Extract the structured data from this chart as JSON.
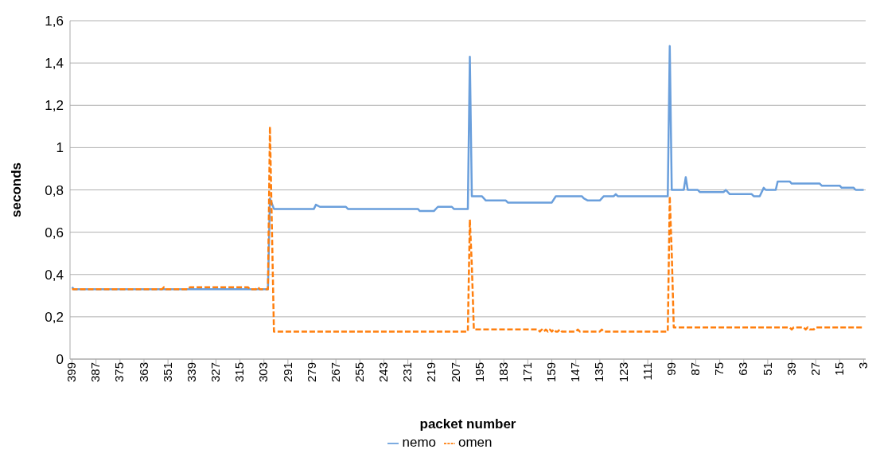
{
  "chart_data": {
    "type": "line",
    "xlabel": "packet number",
    "ylabel": "seconds",
    "xlim": [
      400,
      2
    ],
    "xticks": [
      399,
      387,
      375,
      363,
      351,
      339,
      327,
      315,
      303,
      291,
      279,
      267,
      255,
      243,
      231,
      219,
      207,
      195,
      183,
      171,
      159,
      147,
      135,
      123,
      111,
      99,
      87,
      75,
      63,
      51,
      39,
      27,
      15,
      3
    ],
    "ylim": [
      0,
      1.6
    ],
    "yticks": [
      0,
      {
        "value": 0.2,
        "label": "0,2"
      },
      {
        "value": 0.4,
        "label": "0,4"
      },
      {
        "value": 0.6,
        "label": "0,6"
      },
      {
        "value": 0.8,
        "label": "0,8"
      },
      1,
      {
        "value": 1.2,
        "label": "1,2"
      },
      {
        "value": 1.4,
        "label": "1,4"
      },
      {
        "value": 1.6,
        "label": "1,6"
      }
    ],
    "grid": "y",
    "legend": "bottom",
    "marker": "none",
    "series": [
      {
        "name": "nemo",
        "color": "#6a9fdc",
        "line_style": "solid",
        "x": [
          399,
          398,
          301,
          300,
          298,
          278,
          277,
          275,
          262,
          261,
          226,
          225,
          218,
          216,
          209,
          208,
          201,
          200,
          199,
          194,
          192,
          182,
          181,
          159,
          157,
          144,
          143,
          141,
          135,
          133,
          128,
          127,
          126,
          101,
          100,
          99,
          93,
          92,
          91,
          86,
          85,
          73,
          72,
          70,
          59,
          58,
          55,
          53,
          52,
          47,
          46,
          40,
          39,
          25,
          24,
          15,
          14,
          8,
          7,
          3
        ],
        "values": [
          0.34,
          0.33,
          0.33,
          0.76,
          0.71,
          0.71,
          0.73,
          0.72,
          0.72,
          0.71,
          0.71,
          0.7,
          0.7,
          0.72,
          0.72,
          0.71,
          0.71,
          1.43,
          0.77,
          0.77,
          0.75,
          0.75,
          0.74,
          0.74,
          0.77,
          0.77,
          0.76,
          0.75,
          0.75,
          0.77,
          0.77,
          0.78,
          0.77,
          0.77,
          1.48,
          0.8,
          0.8,
          0.86,
          0.8,
          0.8,
          0.79,
          0.79,
          0.8,
          0.78,
          0.78,
          0.77,
          0.77,
          0.81,
          0.8,
          0.8,
          0.84,
          0.84,
          0.83,
          0.83,
          0.82,
          0.82,
          0.81,
          0.81,
          0.8,
          0.8
        ]
      },
      {
        "name": "omen",
        "color": "#ff7f0e",
        "line_style": "dashed",
        "x": [
          399,
          354,
          353,
          352,
          341,
          340,
          311,
          310,
          307,
          306,
          305,
          301,
          300,
          298,
          201,
          200,
          199,
          198,
          166,
          165,
          164,
          163,
          162,
          161,
          160,
          159,
          158,
          157,
          156,
          155,
          154,
          147,
          146,
          145,
          135,
          134,
          133,
          101,
          100,
          99,
          98,
          40,
          39,
          38,
          33,
          32,
          31,
          30,
          28,
          27,
          3
        ],
        "values": [
          0.33,
          0.33,
          0.34,
          0.33,
          0.33,
          0.34,
          0.34,
          0.33,
          0.33,
          0.34,
          0.33,
          0.33,
          1.1,
          0.13,
          0.13,
          0.66,
          0.44,
          0.14,
          0.14,
          0.13,
          0.14,
          0.13,
          0.14,
          0.13,
          0.14,
          0.13,
          0.14,
          0.13,
          0.13,
          0.14,
          0.13,
          0.13,
          0.14,
          0.13,
          0.13,
          0.14,
          0.13,
          0.13,
          0.77,
          0.5,
          0.15,
          0.15,
          0.14,
          0.15,
          0.15,
          0.14,
          0.15,
          0.14,
          0.14,
          0.15,
          0.15
        ]
      }
    ]
  }
}
